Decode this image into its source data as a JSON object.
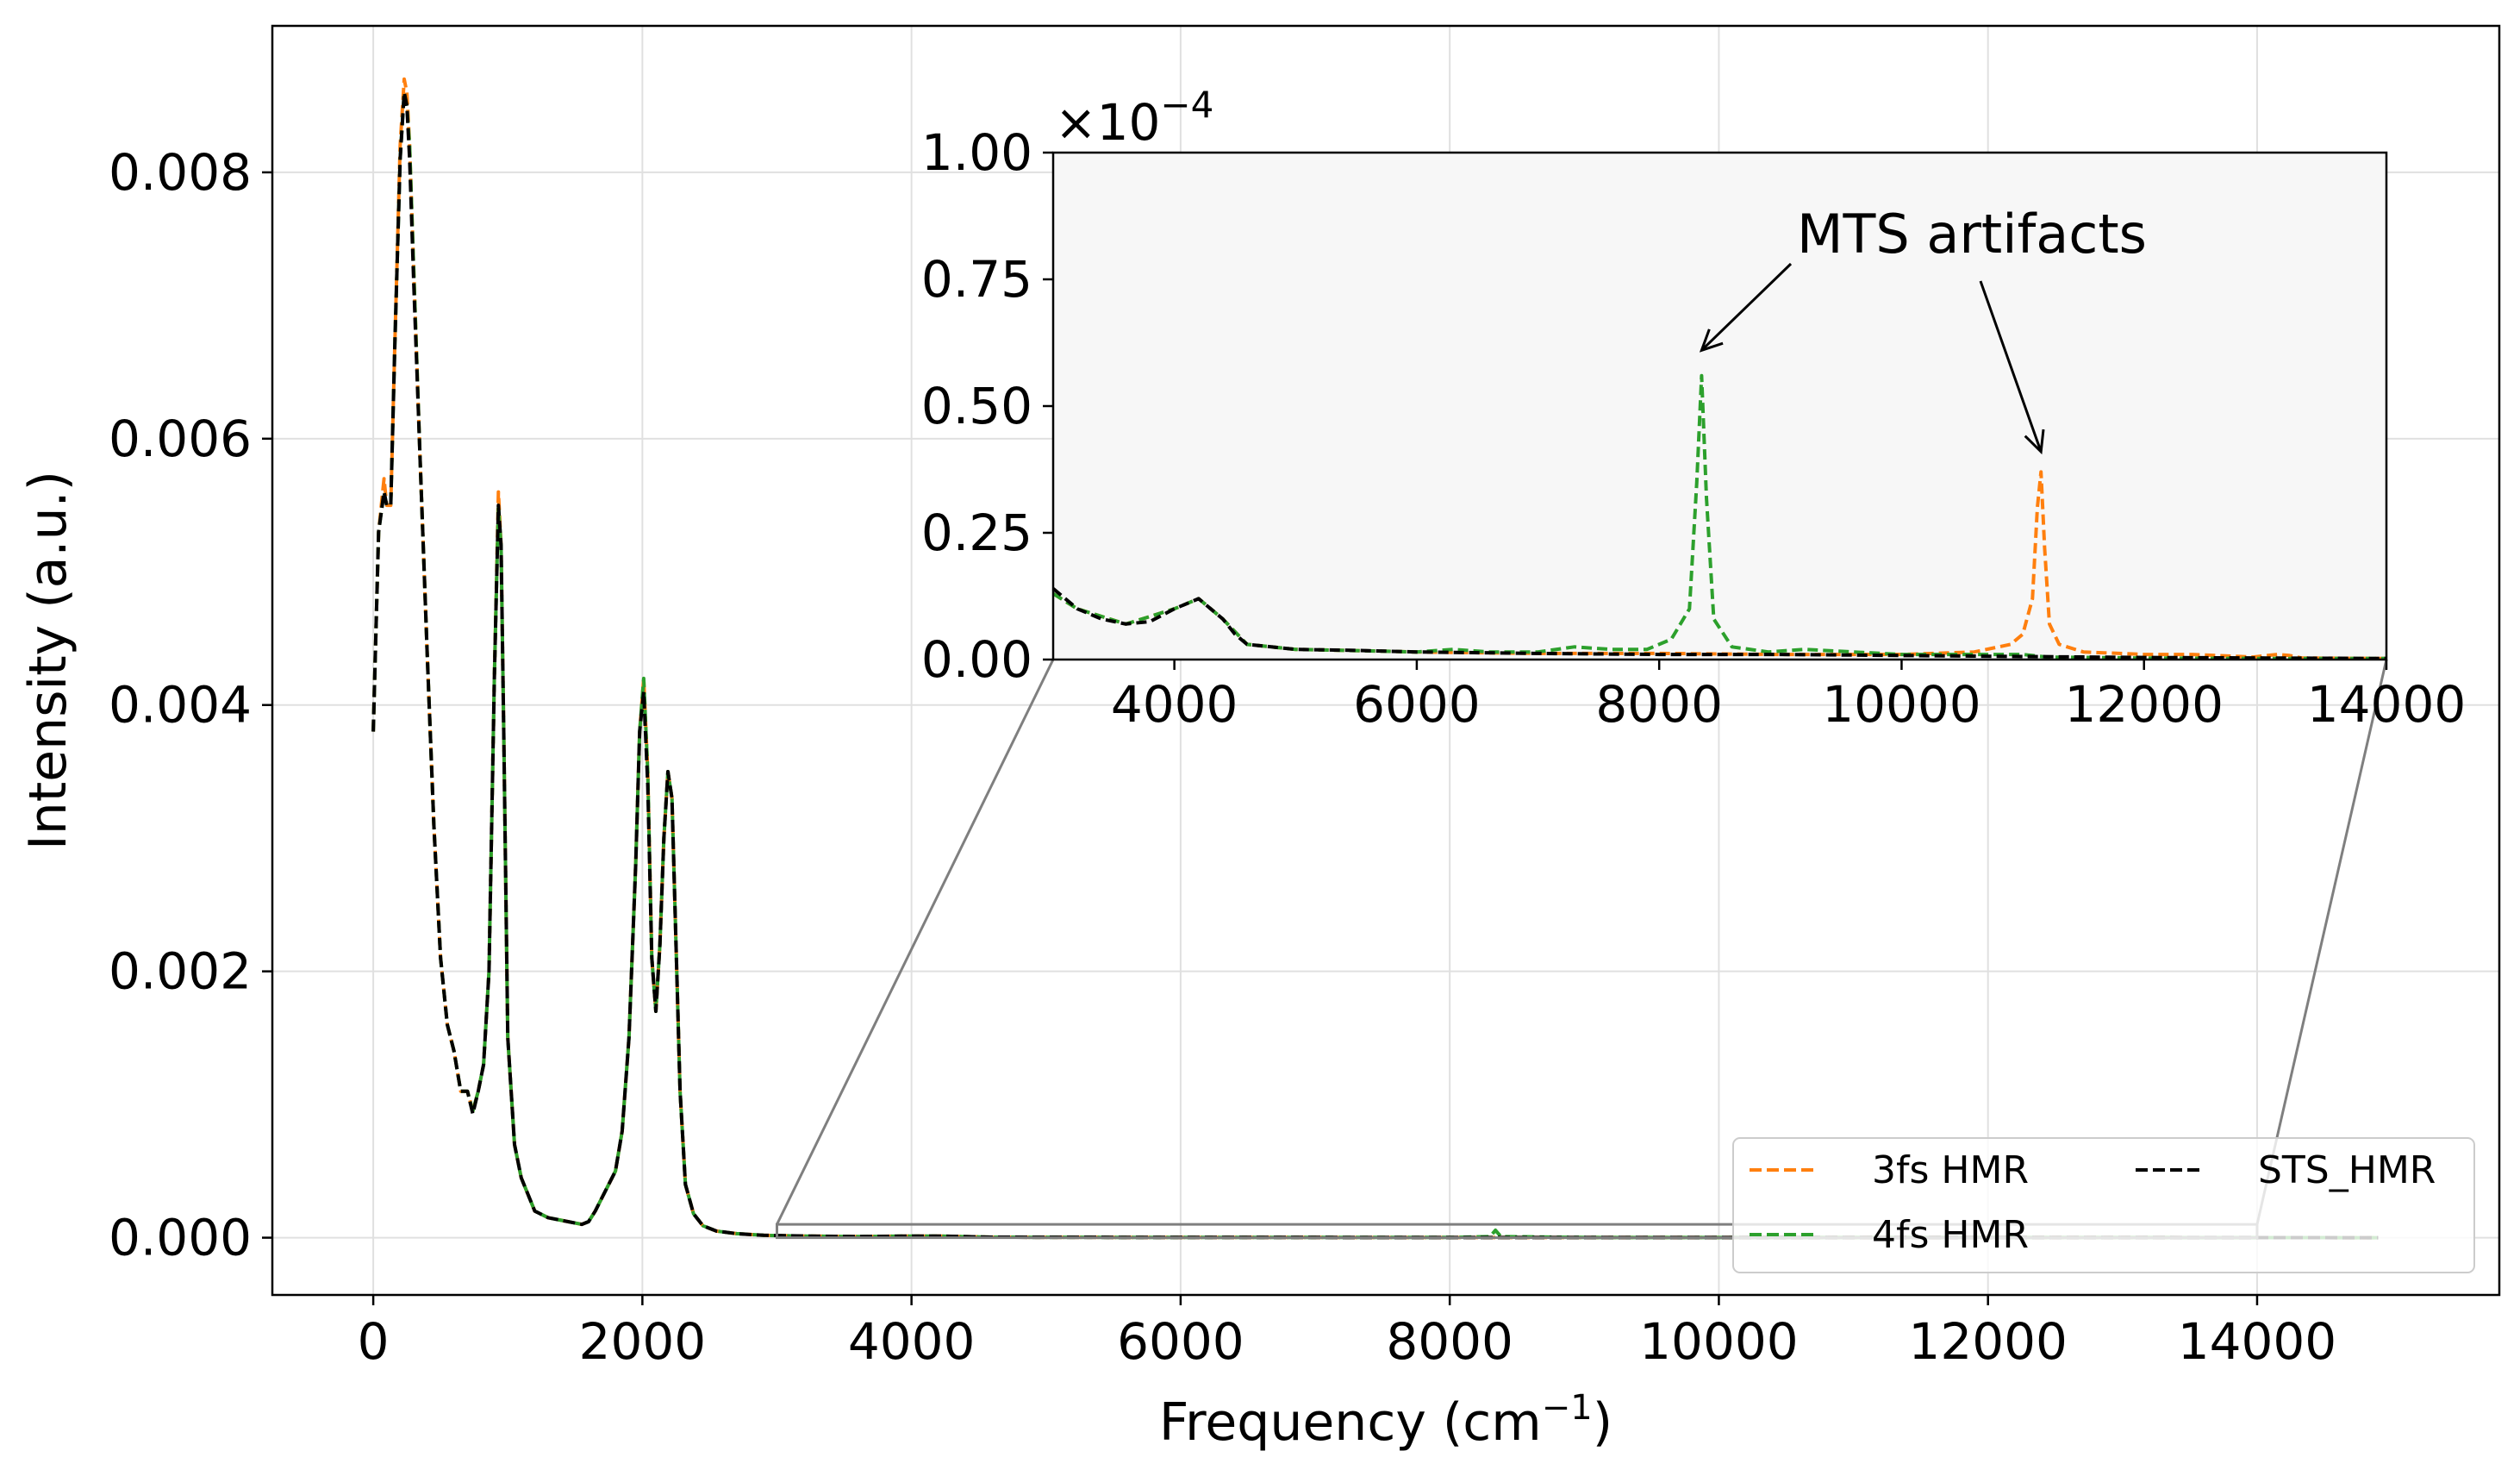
{
  "chart_data": [
    {
      "type": "line",
      "title": "",
      "xlabel": "Frequency (cm",
      "xlabel_sup": "−1",
      "xlabel_close": ")",
      "ylabel": "Intensity (a.u.)",
      "xlim": [
        -750,
        15800
      ],
      "ylim": [
        -0.00043,
        0.0091
      ],
      "x_ticks": [
        0,
        2000,
        4000,
        6000,
        8000,
        10000,
        12000,
        14000
      ],
      "x_tick_labels": [
        "0",
        "2000",
        "4000",
        "6000",
        "8000",
        "10000",
        "12000",
        "14000"
      ],
      "y_ticks": [
        0.0,
        0.002,
        0.004,
        0.006,
        0.008
      ],
      "y_tick_labels": [
        "0.000",
        "0.002",
        "0.004",
        "0.006",
        "0.008"
      ],
      "grid": true,
      "legend": {
        "placement": "lower right",
        "columns": 2,
        "entries": [
          "3fs HMR",
          "4fs HMR",
          "STS_HMR"
        ]
      },
      "series": [
        {
          "name": "3fs HMR",
          "color": "#ff7f0e",
          "style": "dashed",
          "x": [
            0,
            40,
            80,
            100,
            130,
            160,
            200,
            230,
            250,
            270,
            300,
            350,
            400,
            450,
            500,
            550,
            600,
            650,
            700,
            740,
            780,
            820,
            860,
            900,
            930,
            950,
            970,
            1000,
            1050,
            1100,
            1200,
            1300,
            1400,
            1500,
            1550,
            1600,
            1650,
            1700,
            1800,
            1850,
            1900,
            1950,
            1980,
            2010,
            2040,
            2070,
            2100,
            2130,
            2160,
            2190,
            2220,
            2250,
            2280,
            2320,
            2380,
            2450,
            2550,
            2700,
            2900,
            3200,
            3600,
            4000,
            4200,
            4600,
            5000,
            6000,
            7000,
            8000,
            9000,
            10000,
            11000,
            12000,
            13000,
            14000,
            14900
          ],
          "values": [
            0.0038,
            0.0053,
            0.0057,
            0.0055,
            0.0055,
            0.0067,
            0.0082,
            0.0087,
            0.0086,
            0.0082,
            0.0073,
            0.0058,
            0.0044,
            0.0031,
            0.0021,
            0.0016,
            0.0014,
            0.0011,
            0.0011,
            0.00095,
            0.0011,
            0.0013,
            0.002,
            0.0042,
            0.0056,
            0.0052,
            0.0038,
            0.0015,
            0.0007,
            0.00045,
            0.0002,
            0.00015,
            0.00013,
            0.00011,
            0.0001,
            0.00012,
            0.0002,
            0.0003,
            0.0005,
            0.0008,
            0.0015,
            0.0028,
            0.0038,
            0.0042,
            0.0035,
            0.0021,
            0.0017,
            0.0022,
            0.003,
            0.0035,
            0.0033,
            0.0022,
            0.0011,
            0.0004,
            0.00018,
            9e-05,
            5e-05,
            3e-05,
            1.8e-05,
            1.2e-05,
            8e-06,
            1.2e-05,
            1.2e-05,
            4e-06,
            3e-06,
            2e-06,
            2e-06,
            1.5e-06,
            1.5e-06,
            1e-06,
            1e-06,
            1e-06,
            1e-06,
            5e-07,
            0.0
          ]
        },
        {
          "name": "4fs HMR",
          "color": "#2ca02c",
          "style": "dashed",
          "x": [
            0,
            40,
            80,
            100,
            130,
            160,
            200,
            230,
            250,
            270,
            300,
            350,
            400,
            450,
            500,
            550,
            600,
            650,
            700,
            740,
            780,
            820,
            860,
            900,
            930,
            950,
            970,
            1000,
            1050,
            1100,
            1200,
            1300,
            1400,
            1500,
            1550,
            1600,
            1650,
            1700,
            1800,
            1850,
            1900,
            1950,
            1980,
            2010,
            2040,
            2070,
            2100,
            2130,
            2160,
            2190,
            2220,
            2250,
            2280,
            2320,
            2380,
            2450,
            2550,
            2700,
            2900,
            3200,
            3600,
            4000,
            4200,
            4600,
            5000,
            6000,
            7000,
            8000,
            8300,
            8340,
            8380,
            9000,
            10000,
            11000,
            12000,
            13000,
            14000,
            14900
          ],
          "values": [
            0.0038,
            0.0053,
            0.0056,
            0.0055,
            0.0055,
            0.0067,
            0.0081,
            0.0086,
            0.0085,
            0.0082,
            0.0073,
            0.0058,
            0.0044,
            0.0031,
            0.0021,
            0.0016,
            0.0014,
            0.0011,
            0.0011,
            0.00095,
            0.0011,
            0.0013,
            0.002,
            0.0042,
            0.0055,
            0.0052,
            0.0038,
            0.0015,
            0.0007,
            0.00045,
            0.0002,
            0.00015,
            0.00013,
            0.00011,
            0.0001,
            0.00012,
            0.0002,
            0.0003,
            0.0005,
            0.0008,
            0.0015,
            0.0028,
            0.0038,
            0.0042,
            0.0035,
            0.0021,
            0.0017,
            0.0022,
            0.003,
            0.0035,
            0.0033,
            0.0022,
            0.0011,
            0.0004,
            0.00018,
            9e-05,
            5e-05,
            3e-05,
            1.8e-05,
            1.2e-05,
            8e-06,
            1.2e-05,
            1.2e-05,
            4e-06,
            3e-06,
            2e-06,
            2e-06,
            2e-06,
            8e-06,
            5.6e-05,
            8e-06,
            2e-06,
            1e-06,
            1e-06,
            1e-06,
            1e-06,
            5e-07,
            0.0
          ]
        },
        {
          "name": "STS_HMR",
          "color": "#000000",
          "style": "dashed",
          "x": [
            0,
            40,
            80,
            100,
            130,
            160,
            200,
            230,
            250,
            270,
            300,
            350,
            400,
            450,
            500,
            550,
            600,
            650,
            700,
            740,
            780,
            820,
            860,
            900,
            930,
            950,
            970,
            1000,
            1050,
            1100,
            1200,
            1300,
            1400,
            1500,
            1550,
            1600,
            1650,
            1700,
            1800,
            1850,
            1900,
            1950,
            1980,
            2010,
            2040,
            2070,
            2100,
            2130,
            2160,
            2190,
            2220,
            2250,
            2280,
            2320,
            2380,
            2450,
            2550,
            2700,
            2900,
            3200,
            3600,
            4000,
            4200,
            4600,
            5000,
            6000,
            7000,
            8000,
            9000,
            10000,
            11000,
            12000,
            13000,
            14000,
            14900
          ],
          "values": [
            0.0038,
            0.0053,
            0.0056,
            0.0055,
            0.0055,
            0.0067,
            0.0081,
            0.0086,
            0.0085,
            0.0081,
            0.0072,
            0.0058,
            0.0044,
            0.0031,
            0.0021,
            0.0016,
            0.0014,
            0.0011,
            0.0011,
            0.00093,
            0.0011,
            0.0013,
            0.002,
            0.0042,
            0.0055,
            0.0052,
            0.0038,
            0.0015,
            0.0007,
            0.00045,
            0.0002,
            0.00015,
            0.00013,
            0.00011,
            0.0001,
            0.00012,
            0.0002,
            0.0003,
            0.0005,
            0.0008,
            0.0015,
            0.0028,
            0.0038,
            0.0041,
            0.0034,
            0.0021,
            0.0017,
            0.0022,
            0.003,
            0.0035,
            0.0033,
            0.0022,
            0.0011,
            0.0004,
            0.00018,
            9e-05,
            5e-05,
            3e-05,
            1.8e-05,
            1.2e-05,
            8e-06,
            1.2e-05,
            1.2e-05,
            4e-06,
            3e-06,
            2e-06,
            2e-06,
            1.5e-06,
            1.5e-06,
            1e-06,
            1e-06,
            1e-06,
            1e-06,
            5e-07,
            0.0
          ]
        }
      ]
    },
    {
      "type": "line",
      "title": "",
      "xlabel": "",
      "ylabel": "",
      "inset_of": "main",
      "xlim": [
        3000,
        14000
      ],
      "ylim": [
        0.0,
        1.0
      ],
      "y_scale_factor_label": "×10",
      "y_scale_factor_exp": "−4",
      "x_ticks": [
        4000,
        6000,
        8000,
        10000,
        12000,
        14000
      ],
      "x_tick_labels": [
        "4000",
        "6000",
        "8000",
        "10000",
        "12000",
        "14000"
      ],
      "y_ticks": [
        0.0,
        0.25,
        0.5,
        0.75,
        1.0
      ],
      "y_tick_labels": [
        "0.00",
        "0.25",
        "0.50",
        "0.75",
        "1.00"
      ],
      "background": "#f7f7f7",
      "annotation": {
        "text": "MTS artifacts",
        "arrows_to": [
          [
            8350,
            0.61
          ],
          [
            11150,
            0.41
          ]
        ]
      },
      "series": [
        {
          "name": "3fs HMR",
          "color": "#ff7f0e",
          "style": "dashed",
          "x": [
            3000,
            3200,
            3600,
            4000,
            4200,
            4400,
            4600,
            5000,
            6000,
            7000,
            8000,
            9000,
            10000,
            10600,
            10900,
            11000,
            11080,
            11120,
            11150,
            11180,
            11220,
            11300,
            11500,
            12000,
            12400,
            12900,
            13100,
            13200,
            13300,
            14000
          ],
          "values": [
            0.13,
            0.1,
            0.07,
            0.1,
            0.12,
            0.08,
            0.03,
            0.02,
            0.015,
            0.012,
            0.012,
            0.01,
            0.01,
            0.015,
            0.03,
            0.05,
            0.12,
            0.3,
            0.37,
            0.22,
            0.07,
            0.03,
            0.015,
            0.01,
            0.01,
            0.005,
            0.01,
            0.008,
            0.003,
            0.002
          ]
        },
        {
          "name": "4fs HMR",
          "color": "#2ca02c",
          "style": "dashed",
          "x": [
            3000,
            3200,
            3600,
            4000,
            4200,
            4400,
            4600,
            5000,
            6000,
            6300,
            6600,
            7000,
            7300,
            7600,
            7900,
            8100,
            8250,
            8310,
            8350,
            8390,
            8450,
            8600,
            8900,
            9200,
            9600,
            10000,
            10600,
            11000,
            11200,
            12000,
            13000,
            14000
          ],
          "values": [
            0.13,
            0.1,
            0.07,
            0.1,
            0.12,
            0.08,
            0.03,
            0.02,
            0.015,
            0.02,
            0.015,
            0.015,
            0.025,
            0.02,
            0.02,
            0.04,
            0.1,
            0.35,
            0.56,
            0.32,
            0.08,
            0.025,
            0.015,
            0.02,
            0.015,
            0.01,
            0.01,
            0.01,
            0.005,
            0.003,
            0.002,
            0.002
          ]
        },
        {
          "name": "STS_HMR",
          "color": "#000000",
          "style": "dashed",
          "x": [
            3000,
            3100,
            3200,
            3400,
            3600,
            3800,
            4000,
            4100,
            4200,
            4300,
            4400,
            4500,
            4600,
            4800,
            5000,
            5500,
            6000,
            7000,
            8000,
            9000,
            10000,
            11000,
            12000,
            13000,
            14000
          ],
          "values": [
            0.14,
            0.12,
            0.1,
            0.08,
            0.07,
            0.075,
            0.1,
            0.11,
            0.12,
            0.1,
            0.08,
            0.05,
            0.03,
            0.025,
            0.02,
            0.018,
            0.015,
            0.012,
            0.01,
            0.01,
            0.008,
            0.006,
            0.004,
            0.003,
            0.002
          ]
        }
      ]
    }
  ]
}
